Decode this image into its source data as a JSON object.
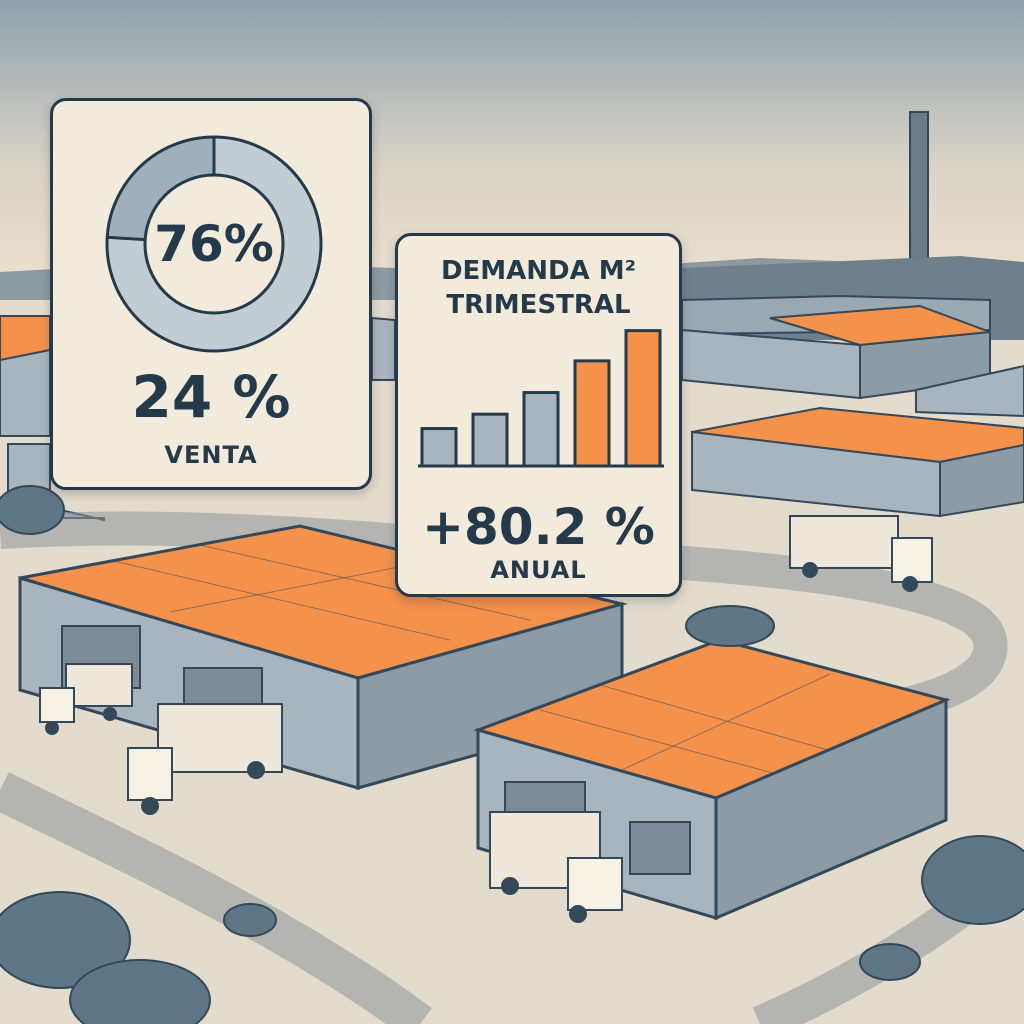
{
  "colors": {
    "accent_orange": "#f4914a",
    "building_gray": "#a8b5bf",
    "ink": "#24394a",
    "card_bg": "#f2ebdc",
    "sky_top": "#8fa1ac",
    "sky_bottom": "#efe2cf"
  },
  "occupancy_card": {
    "donut_value_percent": 76,
    "donut_label": "76%",
    "stat": "24 %",
    "stat_label": "VENTA"
  },
  "demand_card": {
    "title_line1": "DEMANDA M²",
    "title_line2": "TRIMESTRAL",
    "stat": "+80.2 %",
    "stat_label": "ANUAL"
  },
  "chart_data": {
    "type": "bar",
    "title": "DEMANDA M² TRIMESTRAL",
    "categories": [
      "",
      "",
      "",
      "",
      ""
    ],
    "values": [
      26,
      36,
      51,
      73,
      94
    ],
    "highlighted": [
      false,
      false,
      false,
      true,
      true
    ],
    "ylim": [
      0,
      100
    ]
  }
}
